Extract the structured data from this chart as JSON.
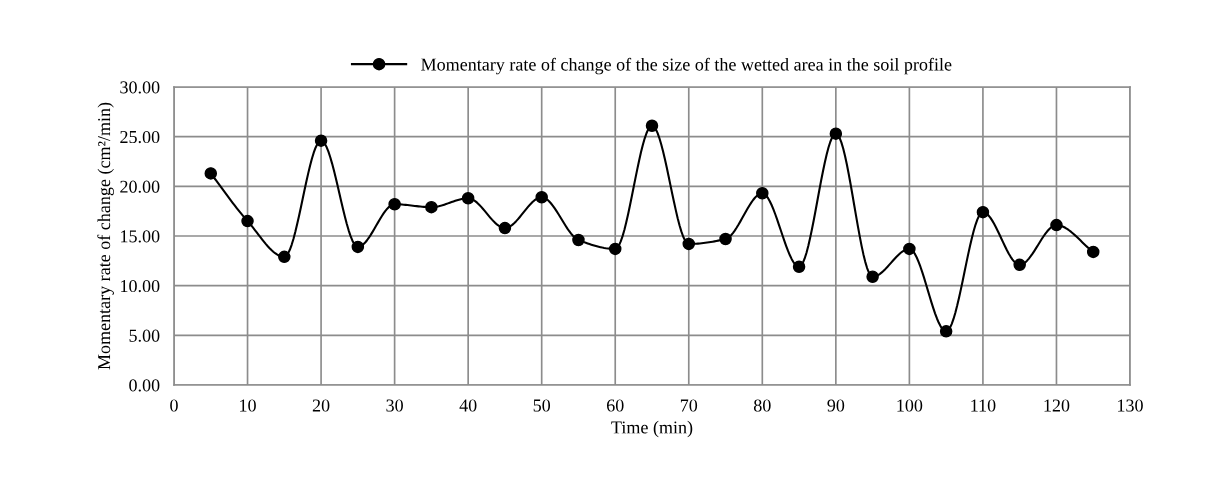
{
  "chart_data": {
    "type": "line",
    "xlabel": "Time (min)",
    "ylabel": "Momentary rate of change (cm²/min)",
    "x": [
      5,
      10,
      15,
      20,
      25,
      30,
      35,
      40,
      45,
      50,
      55,
      60,
      65,
      70,
      75,
      80,
      85,
      90,
      95,
      100,
      105,
      110,
      115,
      120,
      125
    ],
    "series": [
      {
        "name": "Momentary rate of change of the size of the wetted area in the soil profile",
        "color": "#000000",
        "values": [
          21.3,
          16.5,
          12.9,
          24.6,
          13.9,
          18.2,
          17.9,
          18.8,
          15.8,
          18.9,
          14.6,
          13.7,
          26.1,
          14.2,
          14.7,
          19.3,
          11.9,
          25.3,
          10.9,
          13.7,
          5.4,
          17.4,
          12.1,
          16.1,
          13.4
        ]
      }
    ],
    "xlim": [
      0,
      130
    ],
    "xticks": [
      0,
      10,
      20,
      30,
      40,
      50,
      60,
      70,
      80,
      90,
      100,
      110,
      120,
      130
    ],
    "ylim": [
      0,
      30
    ],
    "yticks": [
      {
        "value": 0,
        "label": "0.00"
      },
      {
        "value": 5,
        "label": "5.00"
      },
      {
        "value": 10,
        "label": "10.00"
      },
      {
        "value": 15,
        "label": "15.00"
      },
      {
        "value": 20,
        "label": "20.00"
      },
      {
        "value": 25,
        "label": "25.00"
      },
      {
        "value": 30,
        "label": "30.00"
      }
    ],
    "grid": true,
    "legend": "top",
    "marker": "circle",
    "line_style": "solid"
  }
}
